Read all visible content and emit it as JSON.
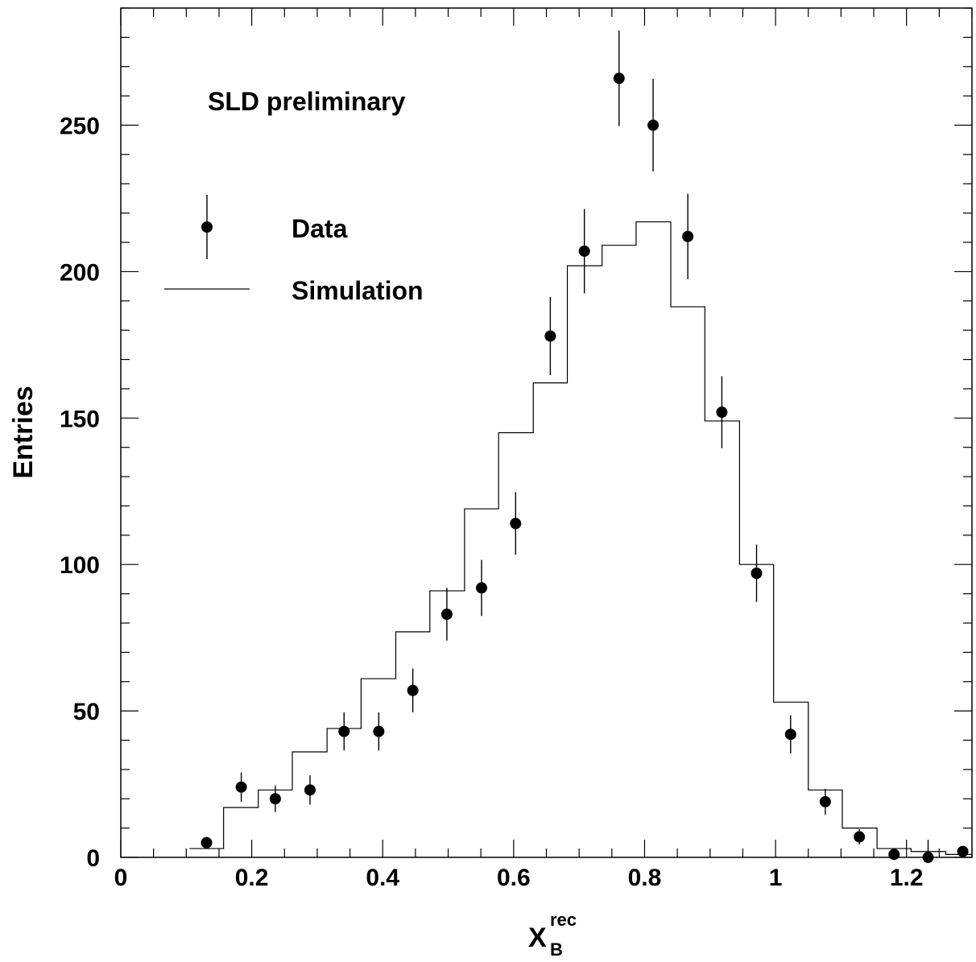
{
  "chart_data": {
    "type": "scatter",
    "xlabel": "X",
    "xlabel_sup": "rec",
    "xlabel_sub": "B",
    "ylabel": "Entries",
    "annotation": "SLD preliminary",
    "xlim": [
      0,
      1.3
    ],
    "ylim": [
      0,
      290
    ],
    "x_ticks": [
      0,
      0.2,
      0.4,
      0.6,
      0.8,
      1,
      1.2
    ],
    "x_tick_labels": [
      "0",
      "0.2",
      "0.4",
      "0.6",
      "0.8",
      "1",
      "1.2"
    ],
    "y_ticks": [
      0,
      50,
      100,
      150,
      200,
      250
    ],
    "y_tick_labels": [
      "0",
      "50",
      "100",
      "150",
      "200",
      "250"
    ],
    "legend": {
      "position": "top-left",
      "entries": [
        {
          "label": "Data",
          "symbol": "marker"
        },
        {
          "label": "Simulation",
          "symbol": "line"
        }
      ]
    },
    "series": [
      {
        "name": "Data",
        "kind": "points",
        "x": [
          0.131,
          0.184,
          0.236,
          0.289,
          0.341,
          0.394,
          0.446,
          0.498,
          0.551,
          0.603,
          0.656,
          0.708,
          0.761,
          0.813,
          0.866,
          0.918,
          0.971,
          1.023,
          1.076,
          1.128,
          1.181,
          1.233,
          1.286
        ],
        "y": [
          5,
          24,
          20,
          23,
          43,
          43,
          57,
          83,
          92,
          114,
          178,
          207,
          266,
          250,
          212,
          152,
          97,
          42,
          19,
          7,
          1,
          0,
          2
        ],
        "yerr": [
          2,
          5,
          4.5,
          5,
          6.5,
          6.5,
          7.5,
          9,
          9.6,
          10.7,
          13.3,
          14.4,
          16.3,
          15.8,
          14.6,
          12.3,
          9.8,
          6.5,
          4.4,
          2.6,
          1,
          6,
          1.4
        ]
      },
      {
        "name": "Simulation",
        "kind": "step",
        "edges": [
          0.105,
          0.157,
          0.21,
          0.262,
          0.315,
          0.367,
          0.42,
          0.472,
          0.525,
          0.577,
          0.63,
          0.682,
          0.735,
          0.787,
          0.84,
          0.892,
          0.945,
          0.997,
          1.05,
          1.102,
          1.155,
          1.207,
          1.26,
          1.3
        ],
        "values": [
          3,
          17,
          23,
          36,
          44,
          61,
          77,
          91,
          119,
          145,
          162,
          202,
          209,
          217,
          188,
          149,
          100,
          53,
          23,
          10,
          3,
          2,
          1
        ]
      }
    ]
  }
}
